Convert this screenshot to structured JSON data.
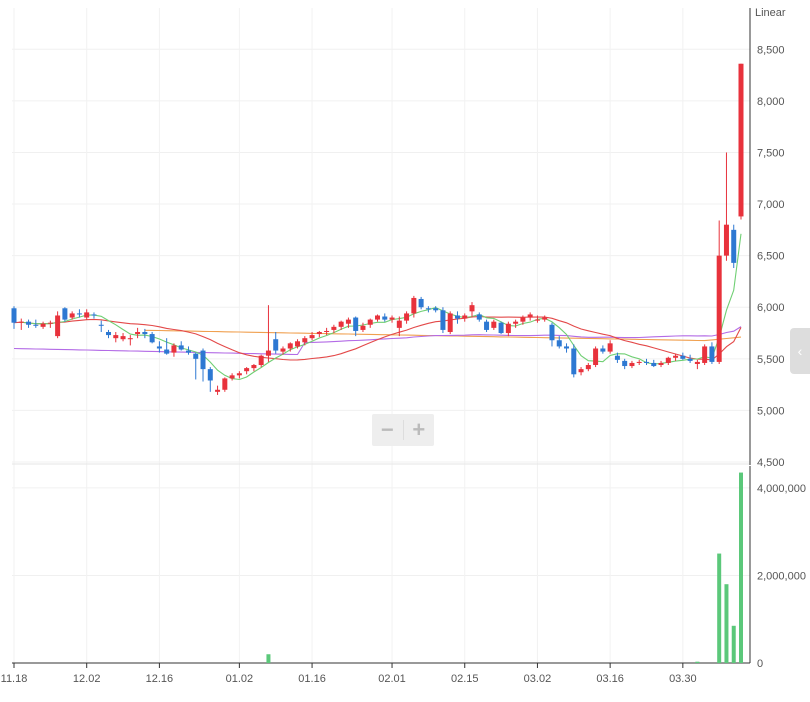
{
  "chart_data": {
    "type": "candlestick",
    "scale_label": "Linear",
    "x_labels": [
      "11.18",
      "12.02",
      "12.16",
      "01.02",
      "01.16",
      "02.01",
      "02.15",
      "03.02",
      "03.16",
      "03.30"
    ],
    "price_axis": {
      "ticks": [
        "8,500",
        "8,000",
        "7,500",
        "7,000",
        "6,500",
        "6,000",
        "5,500",
        "5,000",
        "4,500"
      ],
      "range": [
        4500,
        8900
      ]
    },
    "volume_axis": {
      "ticks": [
        "4,000,000",
        "2,000,000",
        "0"
      ],
      "range": [
        0,
        4500000
      ]
    },
    "colors": {
      "up": "#e8323c",
      "down": "#2d78d2",
      "volume": "#5bc87a",
      "ma5": "#6fcf73",
      "ma20": "#e34949",
      "ma60": "#b36be6",
      "ma120": "#f0a050"
    },
    "candles": [
      [
        5990,
        6010,
        5790,
        5850
      ],
      [
        5850,
        5890,
        5780,
        5860
      ],
      [
        5860,
        5880,
        5800,
        5830
      ],
      [
        5830,
        5880,
        5800,
        5820
      ],
      [
        5810,
        5860,
        5790,
        5840
      ],
      [
        5840,
        5870,
        5800,
        5850
      ],
      [
        5720,
        5960,
        5700,
        5920
      ],
      [
        5990,
        6000,
        5860,
        5880
      ],
      [
        5900,
        5960,
        5880,
        5940
      ],
      [
        5940,
        5980,
        5900,
        5930
      ],
      [
        5900,
        5980,
        5880,
        5950
      ],
      [
        5930,
        5950,
        5890,
        5920
      ],
      [
        5830,
        5870,
        5760,
        5820
      ],
      [
        5760,
        5780,
        5700,
        5730
      ],
      [
        5700,
        5760,
        5660,
        5730
      ],
      [
        5690,
        5750,
        5670,
        5720
      ],
      [
        5690,
        5730,
        5630,
        5700
      ],
      [
        5740,
        5800,
        5700,
        5760
      ],
      [
        5760,
        5790,
        5700,
        5740
      ],
      [
        5740,
        5760,
        5650,
        5660
      ],
      [
        5620,
        5670,
        5560,
        5600
      ],
      [
        5590,
        5700,
        5540,
        5550
      ],
      [
        5560,
        5650,
        5520,
        5630
      ],
      [
        5630,
        5670,
        5580,
        5590
      ],
      [
        5580,
        5620,
        5540,
        5560
      ],
      [
        5550,
        5560,
        5300,
        5500
      ],
      [
        5580,
        5600,
        5280,
        5400
      ],
      [
        5400,
        5420,
        5180,
        5290
      ],
      [
        5180,
        5240,
        5150,
        5200
      ],
      [
        5200,
        5320,
        5180,
        5310
      ],
      [
        5310,
        5360,
        5290,
        5340
      ],
      [
        5340,
        5380,
        5310,
        5360
      ],
      [
        5380,
        5420,
        5350,
        5410
      ],
      [
        5410,
        5450,
        5380,
        5440
      ],
      [
        5440,
        5540,
        5420,
        5530
      ],
      [
        5530,
        6020,
        5470,
        5580
      ],
      [
        5690,
        5760,
        5550,
        5580
      ],
      [
        5570,
        5620,
        5540,
        5600
      ],
      [
        5600,
        5660,
        5570,
        5650
      ],
      [
        5620,
        5690,
        5600,
        5670
      ],
      [
        5660,
        5720,
        5630,
        5700
      ],
      [
        5700,
        5760,
        5680,
        5730
      ],
      [
        5740,
        5770,
        5710,
        5760
      ],
      [
        5760,
        5800,
        5730,
        5770
      ],
      [
        5780,
        5830,
        5750,
        5810
      ],
      [
        5810,
        5870,
        5780,
        5860
      ],
      [
        5840,
        5900,
        5800,
        5880
      ],
      [
        5900,
        5910,
        5720,
        5770
      ],
      [
        5780,
        5850,
        5760,
        5820
      ],
      [
        5830,
        5890,
        5800,
        5880
      ],
      [
        5880,
        5930,
        5860,
        5920
      ],
      [
        5910,
        5940,
        5860,
        5880
      ],
      [
        5880,
        5920,
        5850,
        5900
      ],
      [
        5800,
        5910,
        5720,
        5870
      ],
      [
        5870,
        5960,
        5840,
        5940
      ],
      [
        5940,
        6110,
        5900,
        6090
      ],
      [
        6080,
        6100,
        5980,
        6000
      ],
      [
        5990,
        6010,
        5950,
        5980
      ],
      [
        5990,
        6010,
        5950,
        5970
      ],
      [
        5970,
        6000,
        5750,
        5780
      ],
      [
        5760,
        5960,
        5740,
        5940
      ],
      [
        5920,
        5960,
        5840,
        5890
      ],
      [
        5890,
        5940,
        5860,
        5920
      ],
      [
        5960,
        6050,
        5900,
        6020
      ],
      [
        5930,
        5950,
        5860,
        5880
      ],
      [
        5860,
        5880,
        5760,
        5780
      ],
      [
        5800,
        5880,
        5780,
        5860
      ],
      [
        5850,
        5860,
        5740,
        5750
      ],
      [
        5750,
        5860,
        5720,
        5840
      ],
      [
        5840,
        5880,
        5800,
        5860
      ],
      [
        5860,
        5920,
        5830,
        5900
      ],
      [
        5900,
        5950,
        5870,
        5930
      ],
      [
        5870,
        5920,
        5850,
        5880
      ],
      [
        5880,
        5920,
        5860,
        5900
      ],
      [
        5830,
        5850,
        5620,
        5680
      ],
      [
        5680,
        5720,
        5600,
        5620
      ],
      [
        5620,
        5650,
        5560,
        5600
      ],
      [
        5600,
        5640,
        5320,
        5350
      ],
      [
        5370,
        5420,
        5340,
        5400
      ],
      [
        5400,
        5460,
        5380,
        5440
      ],
      [
        5440,
        5620,
        5420,
        5600
      ],
      [
        5600,
        5630,
        5550,
        5570
      ],
      [
        5570,
        5680,
        5550,
        5650
      ],
      [
        5530,
        5560,
        5460,
        5490
      ],
      [
        5480,
        5500,
        5400,
        5430
      ],
      [
        5430,
        5480,
        5410,
        5460
      ],
      [
        5460,
        5490,
        5440,
        5470
      ],
      [
        5470,
        5500,
        5440,
        5460
      ],
      [
        5460,
        5490,
        5420,
        5430
      ],
      [
        5440,
        5480,
        5420,
        5460
      ],
      [
        5460,
        5520,
        5440,
        5510
      ],
      [
        5510,
        5550,
        5480,
        5530
      ],
      [
        5530,
        5560,
        5490,
        5500
      ],
      [
        5500,
        5540,
        5460,
        5480
      ],
      [
        5450,
        5490,
        5400,
        5470
      ],
      [
        5460,
        5640,
        5440,
        5620
      ],
      [
        5620,
        5660,
        5450,
        5470
      ],
      [
        5470,
        6840,
        5450,
        6500
      ],
      [
        6500,
        7500,
        6450,
        6800
      ],
      [
        6750,
        6800,
        6380,
        6430
      ],
      [
        6880,
        8360,
        6850,
        8360
      ]
    ],
    "volumes": [
      0,
      0,
      0,
      0,
      0,
      0,
      0,
      0,
      0,
      0,
      0,
      0,
      0,
      0,
      0,
      0,
      0,
      0,
      0,
      0,
      0,
      0,
      0,
      0,
      0,
      0,
      0,
      0,
      0,
      0,
      0,
      0,
      0,
      0,
      0,
      200000,
      0,
      0,
      0,
      0,
      0,
      0,
      0,
      0,
      0,
      0,
      0,
      0,
      0,
      0,
      0,
      0,
      0,
      0,
      0,
      0,
      0,
      0,
      0,
      0,
      0,
      0,
      0,
      0,
      0,
      0,
      0,
      0,
      0,
      0,
      0,
      0,
      0,
      0,
      0,
      0,
      0,
      0,
      0,
      0,
      0,
      0,
      0,
      0,
      0,
      0,
      0,
      0,
      0,
      0,
      0,
      0,
      0,
      0,
      30000,
      0,
      0,
      2500000,
      1800000,
      850000,
      4350000
    ]
  },
  "controls": {
    "zoom_out": "−",
    "zoom_in": "+",
    "side_tab": "‹"
  }
}
